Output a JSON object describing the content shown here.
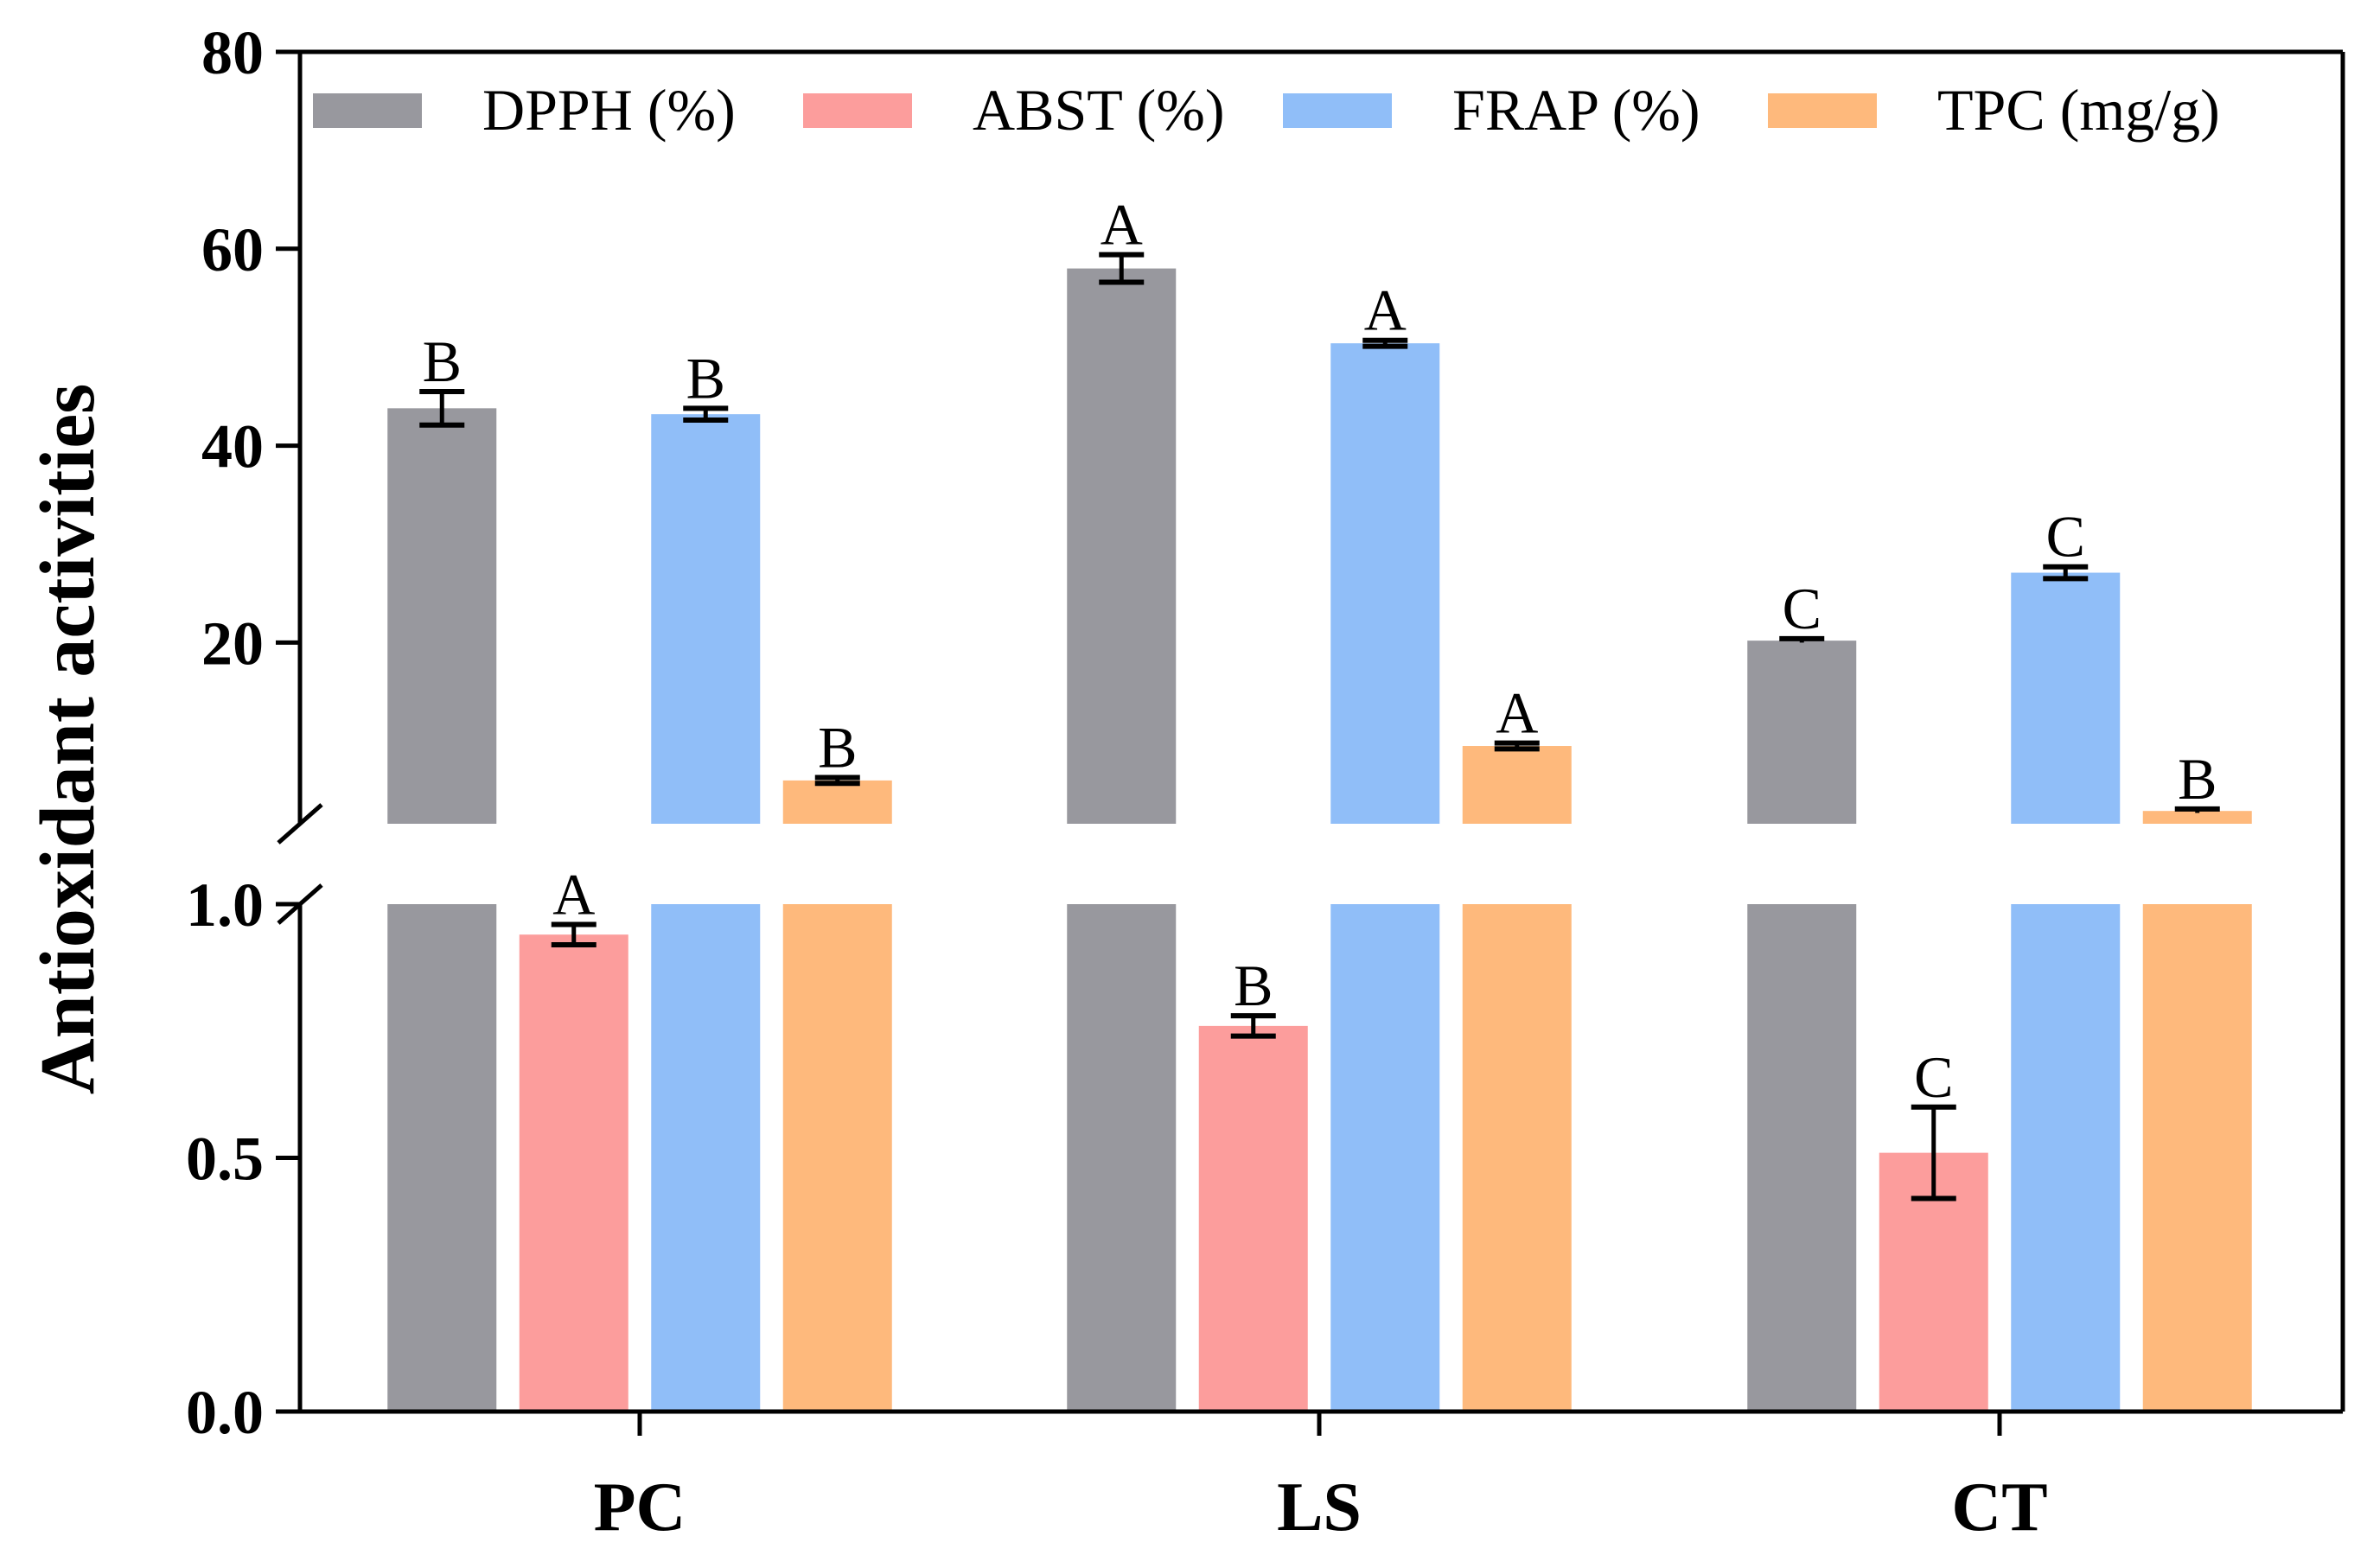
{
  "chart_data": {
    "type": "bar",
    "ylabel": "Antioxidant activities",
    "categories": [
      "PC",
      "LS",
      "CT"
    ],
    "y_axis": {
      "broken": true,
      "lower_range": [
        0,
        1.0
      ],
      "lower_ticks": [
        "0.0",
        "0.5",
        "1.0"
      ],
      "upper_range": [
        1.6,
        80
      ],
      "upper_ticks": [
        "20",
        "40",
        "60",
        "80"
      ]
    },
    "series": [
      {
        "name": "DPPH (%)",
        "color": "#98989e",
        "values": [
          43.8,
          58.0,
          20.2
        ],
        "errors": [
          1.7,
          1.4,
          0.2
        ],
        "letters": [
          "B",
          "A",
          "C"
        ]
      },
      {
        "name": "ABST (%)",
        "color": "#fc9d9c",
        "values": [
          0.94,
          0.76,
          0.51
        ],
        "errors": [
          0.02,
          0.02,
          0.09
        ],
        "letters": [
          "A",
          "B",
          "C"
        ]
      },
      {
        "name": "FRAP (%)",
        "color": "#90bef8",
        "values": [
          43.2,
          50.4,
          27.1
        ],
        "errors": [
          0.6,
          0.3,
          0.6
        ],
        "letters": [
          "B",
          "A",
          "C"
        ]
      },
      {
        "name": "TPC (mg/g)",
        "color": "#feb97c",
        "values": [
          6.0,
          9.5,
          2.9
        ],
        "errors": [
          0.3,
          0.3,
          0.2
        ],
        "letters": [
          "B",
          "A",
          "B"
        ]
      }
    ]
  }
}
